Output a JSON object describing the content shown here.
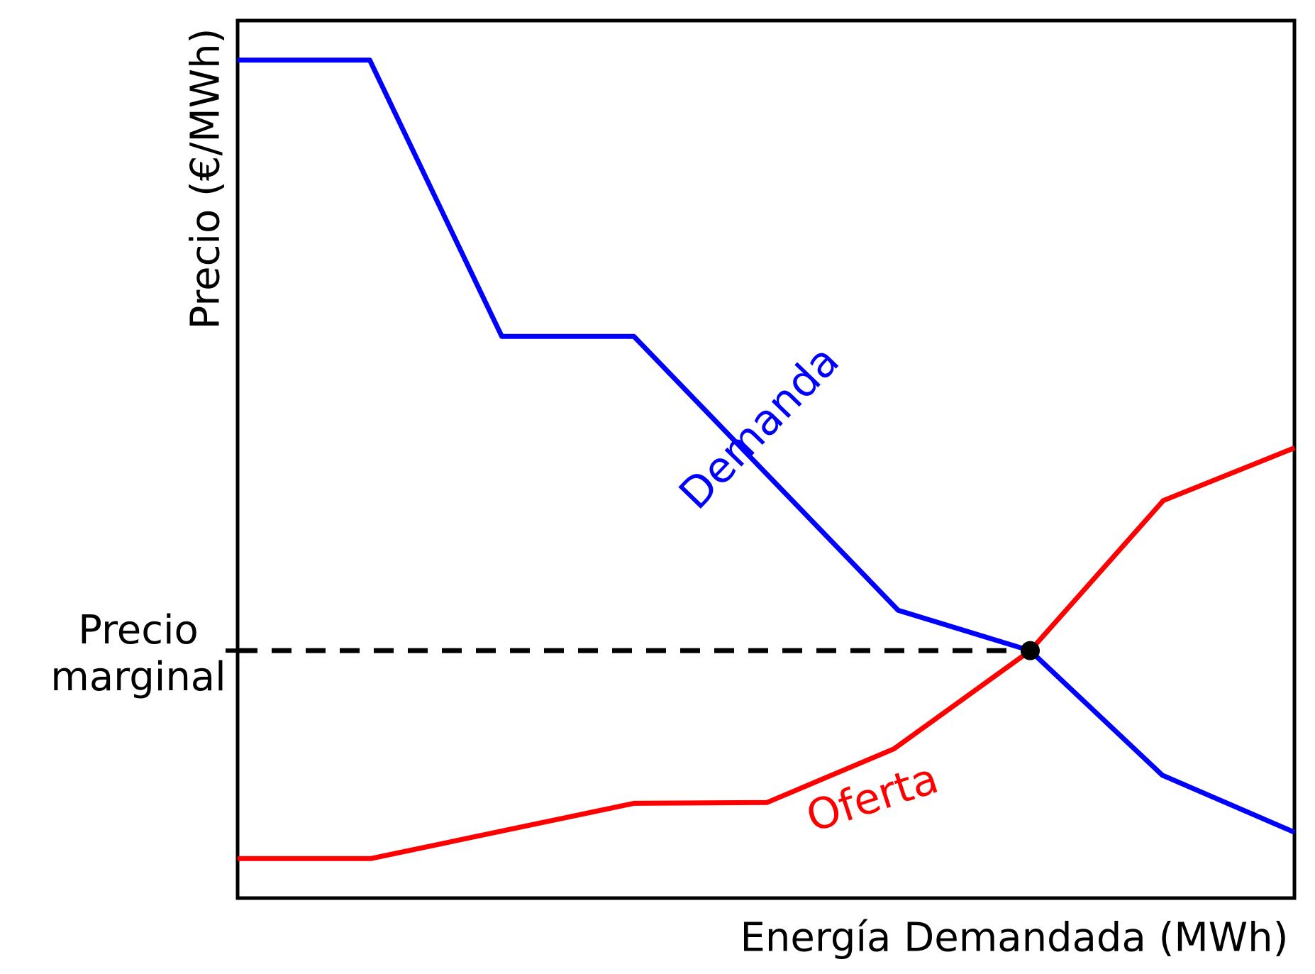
{
  "chart_data": {
    "type": "line",
    "title": "",
    "xlabel": "Energía Demandada (MWh)",
    "ylabel": "Precio (€/MWh)",
    "axis_scale": "normalized 0-100 (no numeric ticks or gridlines shown)",
    "grid": false,
    "xlim": [
      0,
      100
    ],
    "ylim": [
      0,
      100
    ],
    "legend_position": "labels drawn along curves",
    "series": [
      {
        "name": "Demanda",
        "color": "#0000ff",
        "points": [
          [
            0,
            95.5
          ],
          [
            12.5,
            95.5
          ],
          [
            25.0,
            64.0
          ],
          [
            37.5,
            64.0
          ],
          [
            62.5,
            32.8
          ],
          [
            75.0,
            28.2
          ],
          [
            87.5,
            14.0
          ],
          [
            100,
            7.5
          ]
        ]
      },
      {
        "name": "Oferta",
        "color": "#ff0000",
        "points": [
          [
            0,
            4.5
          ],
          [
            12.6,
            4.5
          ],
          [
            37.5,
            10.8
          ],
          [
            50.1,
            10.9
          ],
          [
            62.1,
            17.0
          ],
          [
            75.0,
            28.2
          ],
          [
            87.6,
            45.3
          ],
          [
            100,
            51.3
          ]
        ]
      }
    ],
    "equilibrium_point": {
      "x": 75.0,
      "y": 28.2,
      "marker": "filled-circle",
      "color": "#000000"
    },
    "guide_line": {
      "style": "dashed",
      "color": "#000000",
      "from_x": 0,
      "to_x": 75.0,
      "y": 28.2
    },
    "annotations": [
      {
        "text": "Precio\nmarginal",
        "color": "#000000",
        "points_to": "guide_line at y-axis"
      }
    ]
  }
}
